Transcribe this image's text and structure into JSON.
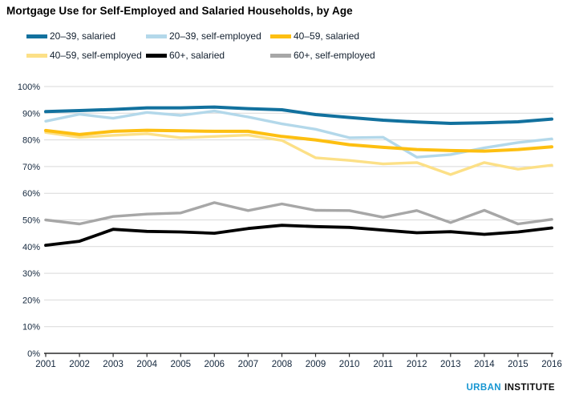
{
  "title": "Mortgage Use for Self-Employed and Salaried Households, by Age",
  "logo": {
    "urban": "URBAN",
    "institute": "INSTITUTE"
  },
  "colors": {
    "brand_cyan": "#1696d2",
    "dark_blue": "#12719e",
    "light_blue": "#b3d8ea",
    "gold": "#fdbf11",
    "light_yellow": "#fce087",
    "black": "#000000",
    "gray": "#a7a7a7",
    "gridline": "#d9d9d9",
    "axis": "#2b2b2b",
    "tick_text": "#14273d"
  },
  "chart_data": {
    "type": "line",
    "title": "Mortgage Use for Self-Employed and Salaried Households, by Age",
    "x": [
      2001,
      2002,
      2003,
      2004,
      2005,
      2006,
      2007,
      2008,
      2009,
      2010,
      2011,
      2012,
      2013,
      2014,
      2015,
      2016
    ],
    "series": [
      {
        "name": "20–39, salaried",
        "color": "#12719e",
        "values": [
          90.6,
          91.0,
          91.4,
          92.0,
          92.0,
          92.3,
          91.7,
          91.3,
          89.5,
          88.4,
          87.4,
          86.7,
          86.2,
          86.4,
          86.8,
          87.8
        ]
      },
      {
        "name": "20–39, self-employed",
        "color": "#b3d8ea",
        "values": [
          87.0,
          89.6,
          88.1,
          90.3,
          89.2,
          90.8,
          88.6,
          86.0,
          84.0,
          80.8,
          81.0,
          73.5,
          74.5,
          77.0,
          79.0,
          80.4
        ]
      },
      {
        "name": "40–59, salaried",
        "color": "#fdbf11",
        "values": [
          83.5,
          82.0,
          83.2,
          83.6,
          83.4,
          83.2,
          83.2,
          81.3,
          80.0,
          78.2,
          77.2,
          76.4,
          76.0,
          75.8,
          76.4,
          77.4
        ]
      },
      {
        "name": "40–59, self-employed",
        "color": "#fce087",
        "values": [
          82.8,
          81.0,
          81.7,
          82.3,
          80.8,
          81.3,
          81.8,
          79.8,
          73.3,
          72.3,
          71.0,
          71.5,
          67.0,
          71.5,
          69.0,
          70.5
        ]
      },
      {
        "name": "60+, salaried",
        "color": "#000000",
        "values": [
          40.5,
          42.0,
          46.5,
          45.7,
          45.5,
          45.0,
          46.8,
          48.0,
          47.5,
          47.2,
          46.2,
          45.2,
          45.6,
          44.6,
          45.5,
          47.0
        ]
      },
      {
        "name": "60+, self-employed",
        "color": "#a7a7a7",
        "values": [
          50.0,
          48.5,
          51.3,
          52.2,
          52.6,
          56.5,
          53.5,
          56.0,
          53.6,
          53.5,
          51.0,
          53.5,
          49.0,
          53.6,
          48.5,
          50.2
        ]
      }
    ],
    "ylim": [
      0,
      100
    ],
    "ytick_step": 10,
    "ytick_suffix": "%",
    "grid": "horizontal",
    "legend_position": "top"
  }
}
